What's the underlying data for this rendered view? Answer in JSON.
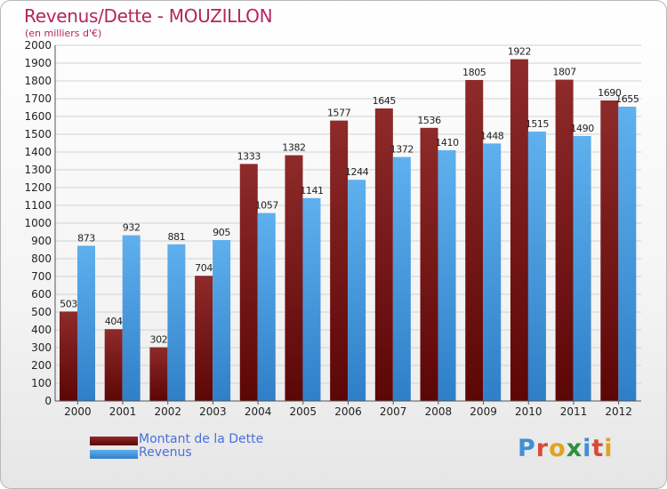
{
  "header": {
    "title": "Revenus/Dette - MOUZILLON",
    "subtitle": "(en milliers d'€)"
  },
  "chart_data": {
    "type": "bar",
    "categories": [
      "2000",
      "2001",
      "2002",
      "2003",
      "2004",
      "2005",
      "2006",
      "2007",
      "2008",
      "2009",
      "2010",
      "2011",
      "2012"
    ],
    "series": [
      {
        "name": "Montant de la Dette",
        "color": "#7a1616",
        "values": [
          503,
          404,
          302,
          704,
          1333,
          1382,
          1577,
          1645,
          1536,
          1805,
          1922,
          1807,
          1690
        ]
      },
      {
        "name": "Revenus",
        "color": "#4a9ee0",
        "values": [
          873,
          932,
          881,
          905,
          1057,
          1141,
          1244,
          1372,
          1410,
          1448,
          1515,
          1490,
          1655
        ]
      }
    ],
    "ylim": [
      0,
      2000
    ],
    "yticks": [
      0,
      100,
      200,
      300,
      400,
      500,
      600,
      700,
      800,
      900,
      1000,
      1100,
      1200,
      1300,
      1400,
      1500,
      1600,
      1700,
      1800,
      1900,
      2000
    ],
    "grid": true,
    "legend": "bottom-left"
  },
  "legend": {
    "items": [
      {
        "label": "Montant de la Dette",
        "color": "#7a1616"
      },
      {
        "label": "Revenus",
        "color": "#4a9ee0"
      }
    ]
  },
  "brand": {
    "letters": [
      {
        "ch": "P",
        "color": "#3f8fd6"
      },
      {
        "ch": "r",
        "color": "#d94a3a"
      },
      {
        "ch": "o",
        "color": "#e2a21b"
      },
      {
        "ch": "x",
        "color": "#2e8f3e"
      },
      {
        "ch": "i",
        "color": "#3f8fd6"
      },
      {
        "ch": "t",
        "color": "#d94a3a"
      },
      {
        "ch": "i",
        "color": "#e2a21b"
      }
    ]
  }
}
